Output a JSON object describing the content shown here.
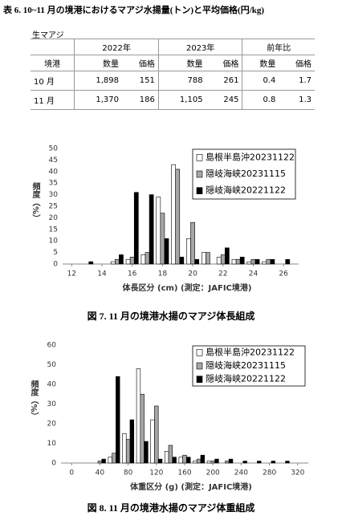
{
  "table": {
    "title": "表 6. 10~11 月の境港におけるマアジ水揚量(トン)と平均価格(円/kg)",
    "label": "生マアジ",
    "group_header": [
      "2022年",
      "2023年",
      "前年比"
    ],
    "header": [
      "境港",
      "数量",
      "価格",
      "数量",
      "価格",
      "数量",
      "価格"
    ],
    "rows": [
      [
        "10 月",
        "1,898",
        "151",
        "788",
        "261",
        "0.4",
        "1.7"
      ],
      [
        "11 月",
        "1,370",
        "186",
        "1,105",
        "245",
        "0.8",
        "1.3"
      ]
    ]
  },
  "chart_data": [
    {
      "type": "bar",
      "caption": "図 7. 11 月の境港水揚のマアジ体長組成",
      "x_label": "体長区分 (cm)  (測定：JAFIC境港)",
      "y_label": "頻度（%）",
      "x": [
        13,
        14,
        15,
        16,
        17,
        18,
        19,
        20,
        21,
        22,
        23,
        24,
        25,
        26
      ],
      "series": [
        {
          "name": "島根半島沖20231122",
          "color": "#ffffff",
          "values": [
            0,
            0,
            1,
            2,
            4,
            29,
            43,
            11,
            5,
            3,
            2,
            1,
            1,
            0
          ]
        },
        {
          "name": "隠岐海峡20231115",
          "color": "#a6a6a6",
          "values": [
            0,
            0,
            2,
            3,
            5,
            22,
            41,
            18,
            5,
            4,
            2,
            2,
            2,
            0
          ]
        },
        {
          "name": "隠岐海峡20221122",
          "color": "#000000",
          "values": [
            1,
            0,
            4,
            31,
            30,
            11,
            3,
            2,
            0,
            7,
            3,
            2,
            2,
            2
          ]
        }
      ],
      "xlim": [
        11.4,
        27
      ],
      "xticks": [
        12,
        14,
        16,
        18,
        20,
        22,
        24,
        26
      ],
      "ylim": [
        0,
        50
      ],
      "yticks": [
        0,
        5,
        10,
        15,
        20,
        25,
        30,
        35,
        40,
        45,
        50
      ],
      "legend": "upper right"
    },
    {
      "type": "bar",
      "caption": "図 8. 11 月の境港水揚のマアジ体重組成",
      "x_label": "体重区分 (g)  (測定：JAFIC境港)",
      "y_label": "頻度（%）",
      "x": [
        20,
        40,
        60,
        80,
        100,
        120,
        140,
        160,
        180,
        200,
        220,
        240,
        260,
        280,
        300
      ],
      "series": [
        {
          "name": "島根半島沖20231122",
          "color": "#ffffff",
          "values": [
            0,
            0,
            3,
            15,
            48,
            22,
            6,
            3,
            1,
            1,
            0,
            0,
            0,
            0,
            0
          ]
        },
        {
          "name": "隠岐海峡20231115",
          "color": "#a6a6a6",
          "values": [
            0,
            1,
            5,
            12,
            35,
            29,
            9,
            4,
            2,
            1,
            1,
            0,
            0,
            0,
            0
          ]
        },
        {
          "name": "隠岐海峡20221122",
          "color": "#000000",
          "values": [
            0,
            2,
            44,
            22,
            11,
            2,
            3,
            3,
            4,
            2,
            2,
            1,
            1,
            1,
            1
          ]
        }
      ],
      "xlim": [
        -15,
        335
      ],
      "xticks": [
        0,
        40,
        80,
        120,
        160,
        200,
        240,
        280,
        320
      ],
      "ylim": [
        0,
        60
      ],
      "yticks": [
        0,
        10,
        20,
        30,
        40,
        50,
        60
      ],
      "legend": "upper right"
    }
  ]
}
